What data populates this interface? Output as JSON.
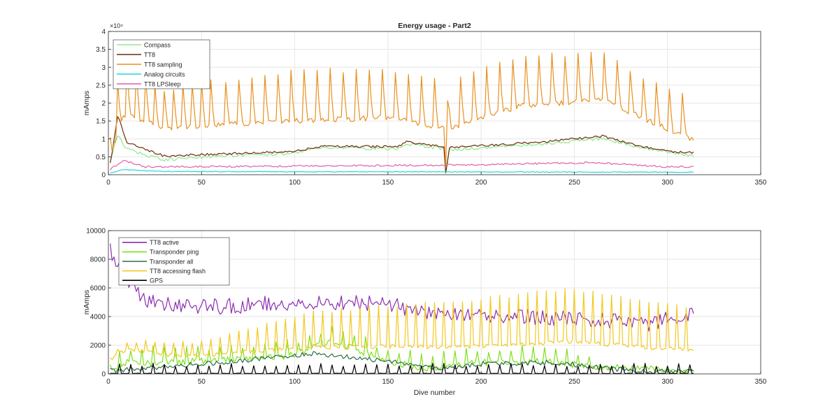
{
  "figure": {
    "xlabel_bottom": "Dive number"
  },
  "chart_data": [
    {
      "type": "line",
      "title": "Energy usage - Part2",
      "xlabel": "",
      "ylabel": "mAmps",
      "xlim": [
        0,
        350
      ],
      "ylim": [
        0,
        40000
      ],
      "xticks": [
        0,
        50,
        100,
        150,
        200,
        250,
        300,
        350
      ],
      "yticks": [
        0,
        5000,
        10000,
        15000,
        20000,
        25000,
        30000,
        35000,
        40000
      ],
      "ytick_labels": [
        "0",
        "0.5",
        "1",
        "1.5",
        "2",
        "2.5",
        "3",
        "3.5",
        "4"
      ],
      "exponent_label": "×10⁴",
      "grid": true,
      "legend": "top-left",
      "series": [
        {
          "name": "Compass",
          "color": "#90e890",
          "pattern": "compass",
          "n": 314
        },
        {
          "name": "TT8",
          "color": "#6b2d0c",
          "pattern": "tt8",
          "n": 314
        },
        {
          "name": "TT8 sampling",
          "color": "#e8901e",
          "pattern": "tt8sampling",
          "n": 314
        },
        {
          "name": "Analog circuits",
          "color": "#1ed7d7",
          "pattern": "analog",
          "n": 314
        },
        {
          "name": "TT8 LPSleep",
          "color": "#e060a8",
          "pattern": "lpsleep",
          "n": 314
        }
      ]
    },
    {
      "type": "line",
      "title": "",
      "xlabel": "Dive number",
      "ylabel": "mAmps",
      "xlim": [
        0,
        350
      ],
      "ylim": [
        0,
        10000
      ],
      "xticks": [
        0,
        50,
        100,
        150,
        200,
        250,
        300,
        350
      ],
      "yticks": [
        0,
        2000,
        4000,
        6000,
        8000,
        10000
      ],
      "ytick_labels": [
        "0",
        "2000",
        "4000",
        "6000",
        "8000",
        "10000"
      ],
      "grid": true,
      "legend": "top-left",
      "series": [
        {
          "name": "TT8 active",
          "color": "#8b2eb0",
          "pattern": "active",
          "n": 314
        },
        {
          "name": "Transponder ping",
          "color": "#7ee01a",
          "pattern": "ping",
          "n": 314
        },
        {
          "name": "Transponder all",
          "color": "#2e6e46",
          "pattern": "tall",
          "n": 314
        },
        {
          "name": "TT8 accessing flash",
          "color": "#f2c81e",
          "pattern": "flash",
          "n": 314
        },
        {
          "name": "GPS",
          "color": "#000000",
          "pattern": "gps",
          "n": 314
        }
      ]
    }
  ]
}
